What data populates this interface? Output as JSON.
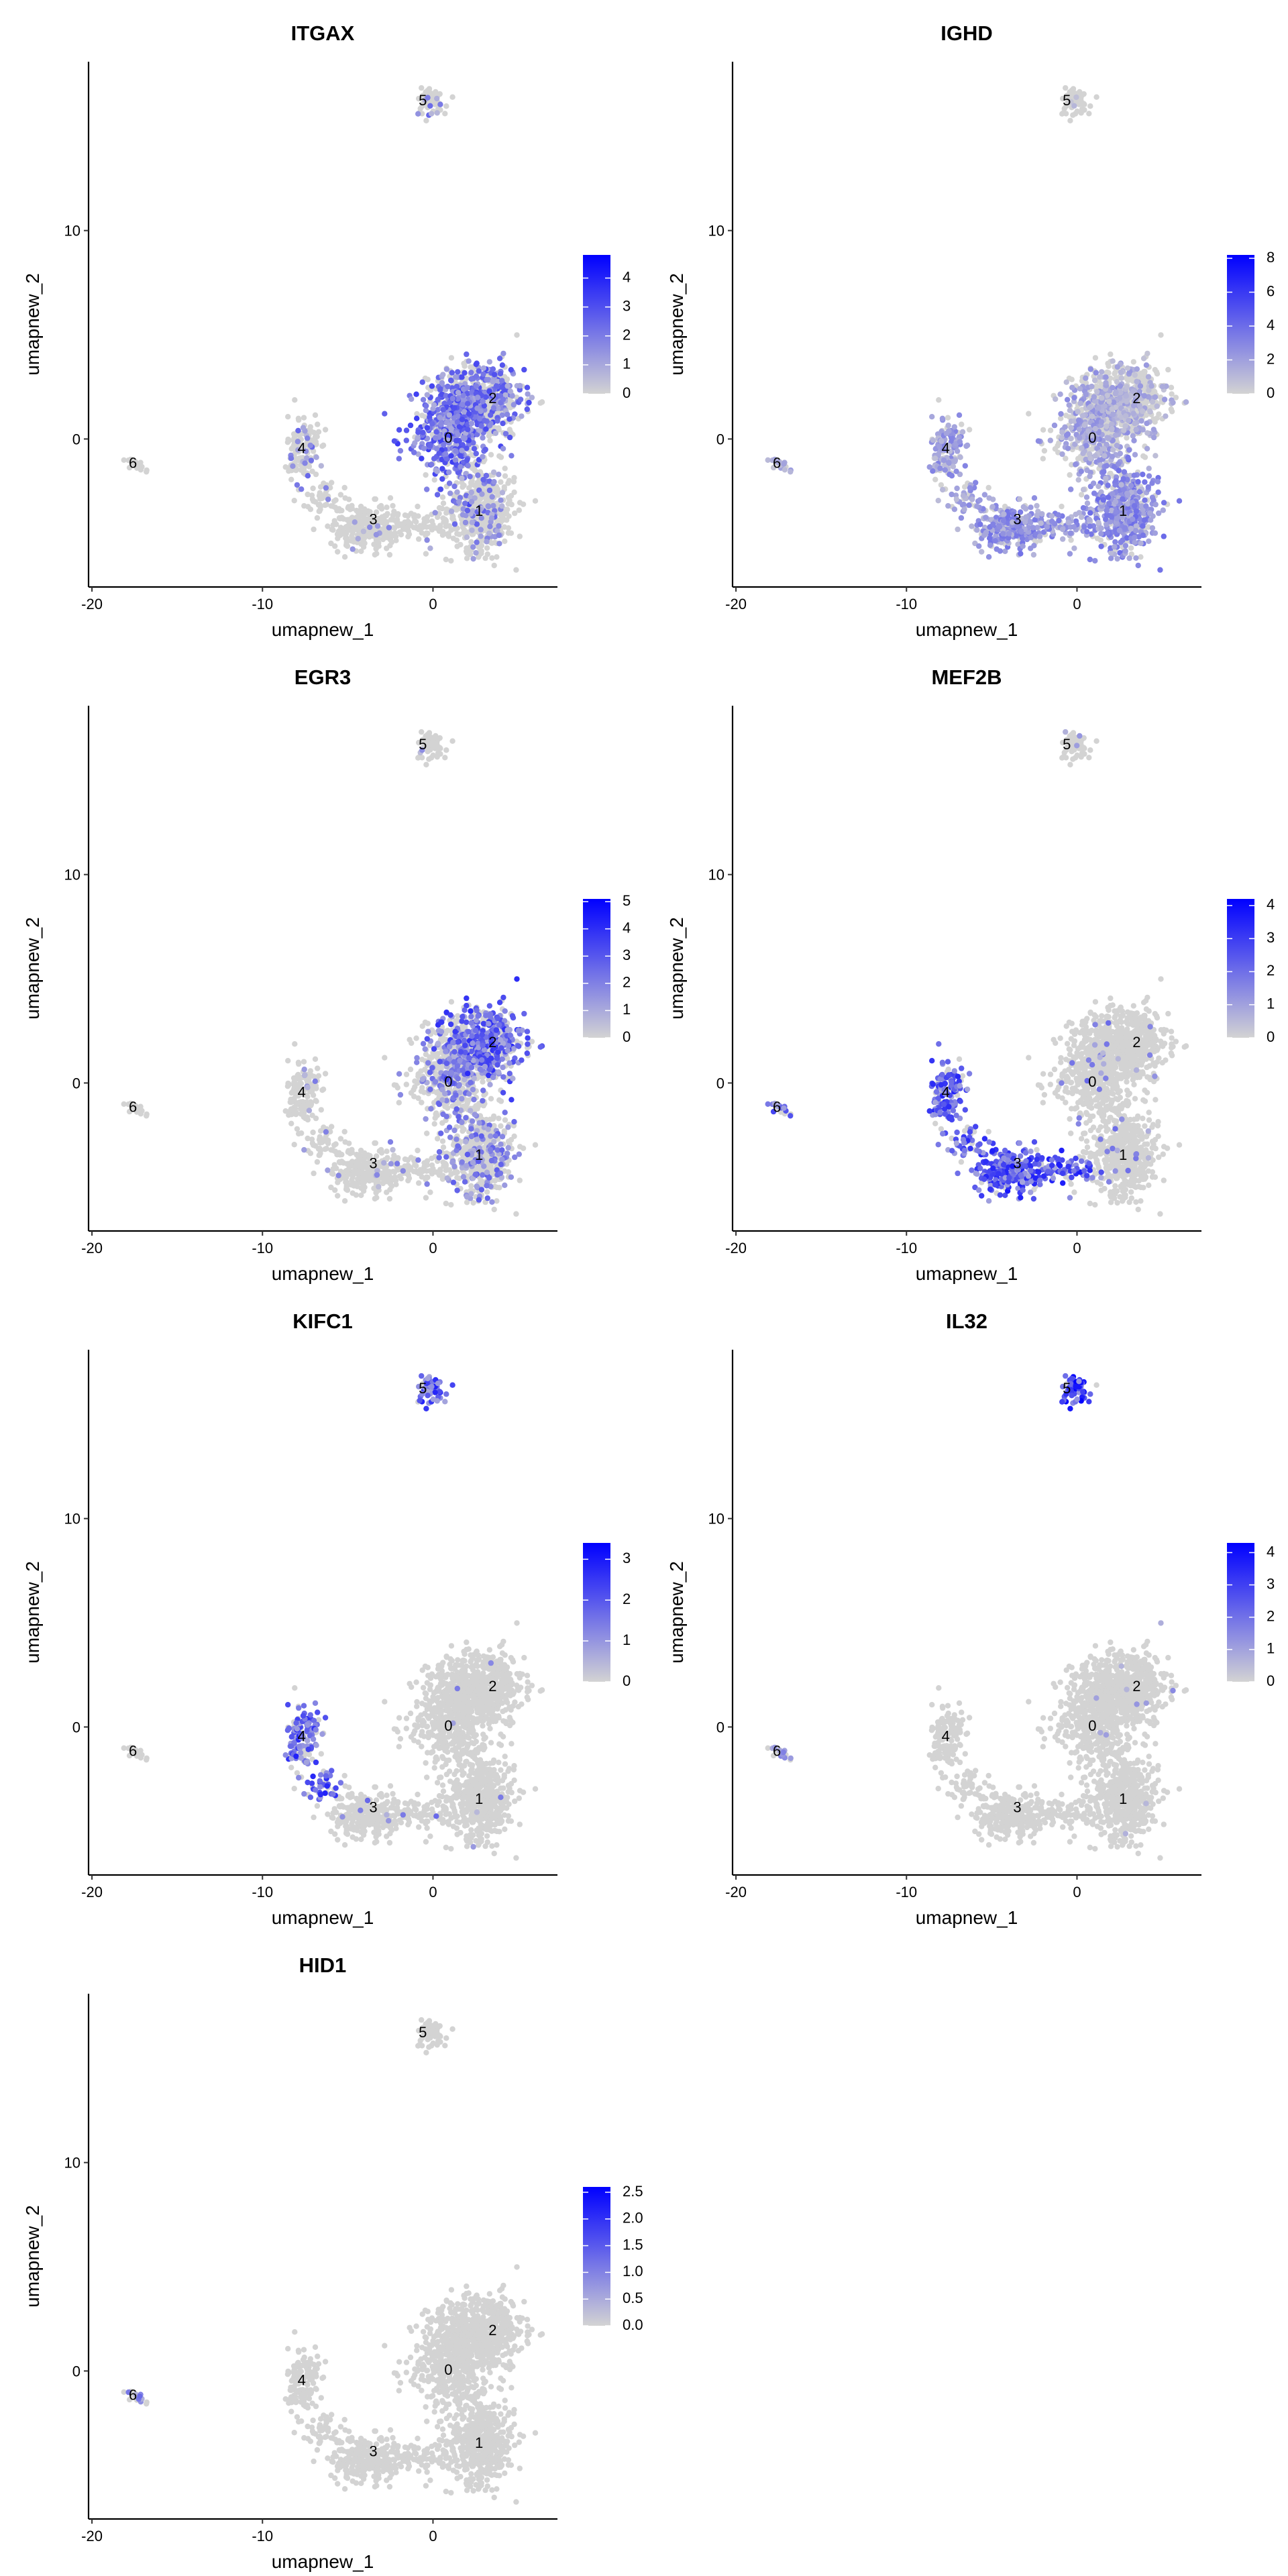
{
  "chart_data": {
    "type": "scatter",
    "layout": "feature plot grid, 2 columns",
    "xlabel": "umapnew_1",
    "ylabel": "umapnew_2",
    "xlim": [
      -20.2,
      7.3
    ],
    "ylim": [
      -7.1,
      18.1
    ],
    "xticks": [
      -20,
      -10,
      0
    ],
    "yticks": [
      0,
      10
    ],
    "color_low": "#d3d3d3",
    "color_high": "#0000ff",
    "cluster_labels": [
      {
        "label": "0",
        "x": 0.9,
        "y": 0.0
      },
      {
        "label": "1",
        "x": 2.7,
        "y": -3.5
      },
      {
        "label": "2",
        "x": 3.5,
        "y": 1.9
      },
      {
        "label": "3",
        "x": -3.5,
        "y": -3.9
      },
      {
        "label": "4",
        "x": -7.7,
        "y": -0.5
      },
      {
        "label": "5",
        "x": -0.6,
        "y": 16.2
      },
      {
        "label": "6",
        "x": -17.6,
        "y": -1.2
      }
    ],
    "cluster_blobs": [
      {
        "cluster": "0",
        "cx": 1.2,
        "cy": 0.6,
        "sx": 1.0,
        "sy": 1.3,
        "n": 550
      },
      {
        "cluster": "0",
        "cx": -1.8,
        "cy": -0.4,
        "sx": 0.35,
        "sy": 0.4,
        "n": 10
      },
      {
        "cluster": "2",
        "cx": 3.1,
        "cy": 1.9,
        "sx": 1.1,
        "sy": 0.9,
        "n": 450
      },
      {
        "cluster": "1",
        "cx": 2.8,
        "cy": -3.4,
        "sx": 1.0,
        "sy": 1.0,
        "n": 500
      },
      {
        "cluster": "3",
        "cx": -4.0,
        "cy": -4.2,
        "sx": 1.0,
        "sy": 0.55,
        "n": 250
      },
      {
        "cluster": "3",
        "cx": -1.0,
        "cy": -4.1,
        "sx": 1.1,
        "sy": 0.3,
        "n": 80
      },
      {
        "cluster": "4",
        "cx": -7.6,
        "cy": -0.6,
        "sx": 0.45,
        "sy": 0.9,
        "n": 150
      },
      {
        "cluster": "4",
        "cx": -6.4,
        "cy": -2.8,
        "sx": 0.5,
        "sy": 0.4,
        "n": 40
      },
      {
        "cluster": "5",
        "cx": -0.1,
        "cy": 16.2,
        "sx": 0.45,
        "sy": 0.35,
        "n": 60
      },
      {
        "cluster": "6",
        "cx": -17.5,
        "cy": -1.2,
        "sx": 0.55,
        "sy": 0.12,
        "n": 22
      }
    ],
    "panels": [
      {
        "title": "ITGAX",
        "max": 4.8,
        "legend_ticks": [
          "0",
          "1",
          "2",
          "3",
          "4"
        ],
        "legend_values": [
          0,
          1,
          2,
          3,
          4
        ],
        "expression": {
          "0": [
            0.75,
            2.4
          ],
          "2": [
            0.5,
            2.2
          ],
          "1": [
            0.15,
            1.8
          ],
          "3": [
            0.03,
            1.5
          ],
          "4": [
            0.1,
            1.8
          ],
          "5": [
            0.2,
            1.8
          ],
          "6": [
            0,
            0
          ]
        }
      },
      {
        "title": "IGHD",
        "max": 8.2,
        "legend_ticks": [
          "0",
          "2",
          "4",
          "6",
          "8"
        ],
        "legend_values": [
          0,
          2,
          4,
          6,
          8
        ],
        "expression": {
          "0": [
            0.5,
            2.0
          ],
          "2": [
            0.35,
            1.6
          ],
          "1": [
            0.8,
            2.8
          ],
          "3": [
            0.8,
            2.6
          ],
          "4": [
            0.7,
            2.2
          ],
          "5": [
            0.05,
            1.5
          ],
          "6": [
            0.5,
            1.5
          ]
        }
      },
      {
        "title": "EGR3",
        "max": 5.1,
        "legend_ticks": [
          "0",
          "1",
          "2",
          "3",
          "4",
          "5"
        ],
        "legend_values": [
          0,
          1,
          2,
          3,
          4,
          5
        ],
        "expression": {
          "0": [
            0.3,
            2.0
          ],
          "2": [
            0.7,
            2.8
          ],
          "1": [
            0.25,
            2.0
          ],
          "3": [
            0.03,
            1.5
          ],
          "4": [
            0.05,
            1.5
          ],
          "5": [
            0.02,
            1.5
          ],
          "6": [
            0,
            0
          ]
        }
      },
      {
        "title": "MEF2B",
        "max": 4.2,
        "legend_ticks": [
          "0",
          "1",
          "2",
          "3",
          "4"
        ],
        "legend_values": [
          0,
          1,
          2,
          3,
          4
        ],
        "expression": {
          "0": [
            0.03,
            1.5
          ],
          "2": [
            0.02,
            1.5
          ],
          "1": [
            0.04,
            1.5
          ],
          "3": [
            0.85,
            2.6
          ],
          "4": [
            0.75,
            2.4
          ],
          "5": [
            0.03,
            1.5
          ],
          "6": [
            0.6,
            2.0
          ]
        }
      },
      {
        "title": "KIFC1",
        "max": 3.4,
        "legend_ticks": [
          "0",
          "1",
          "2",
          "3"
        ],
        "legend_values": [
          0,
          1,
          2,
          3
        ],
        "expression": {
          "0": [
            0.005,
            1.2
          ],
          "2": [
            0.005,
            1.2
          ],
          "1": [
            0.005,
            1.2
          ],
          "3": [
            0.03,
            1.2
          ],
          "4": [
            0.7,
            2.0
          ],
          "5": [
            0.8,
            2.0
          ],
          "6": [
            0,
            0
          ]
        }
      },
      {
        "title": "IL32",
        "max": 4.3,
        "legend_ticks": [
          "0",
          "1",
          "2",
          "3",
          "4"
        ],
        "legend_values": [
          0,
          1,
          2,
          3,
          4
        ],
        "expression": {
          "0": [
            0.005,
            1.2
          ],
          "2": [
            0.005,
            1.2
          ],
          "1": [
            0.01,
            1.2
          ],
          "3": [
            0,
            0
          ],
          "4": [
            0,
            0
          ],
          "5": [
            0.95,
            3.2
          ],
          "6": [
            0.3,
            1.2
          ]
        }
      },
      {
        "title": "HID1",
        "max": 2.6,
        "legend_ticks": [
          "0.0",
          "0.5",
          "1.0",
          "1.5",
          "2.0",
          "2.5"
        ],
        "legend_values": [
          0,
          0.5,
          1,
          1.5,
          2,
          2.5
        ],
        "expression": {
          "0": [
            0,
            0
          ],
          "2": [
            0,
            0
          ],
          "1": [
            0,
            0
          ],
          "3": [
            0,
            0
          ],
          "4": [
            0,
            0
          ],
          "5": [
            0,
            0
          ],
          "6": [
            0.4,
            1.0
          ]
        }
      }
    ]
  }
}
